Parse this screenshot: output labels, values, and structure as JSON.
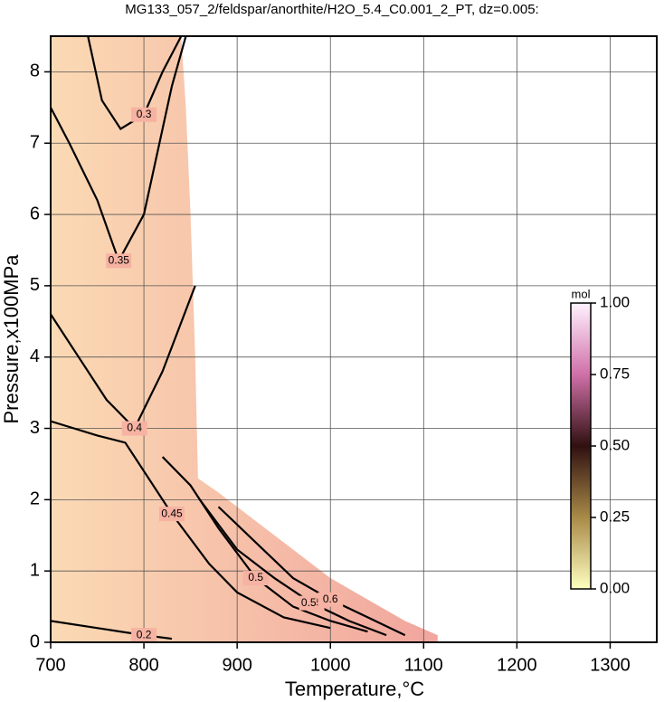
{
  "chart_data": {
    "type": "contour",
    "title": "MG133_057_2/feldspar/anorthite/H2O_5.4_C0.001_2_PT, dz=0.005:",
    "xlabel": "Temperature,°C",
    "ylabel": "Pressure,x100MPa",
    "xlim": [
      700,
      1350
    ],
    "ylim": [
      0,
      8.5
    ],
    "xticks": [
      700,
      800,
      900,
      1000,
      1100,
      1200,
      1300
    ],
    "yticks": [
      0,
      1,
      2,
      3,
      4,
      5,
      6,
      7,
      8
    ],
    "grid": true,
    "fill_color": "#f6b2a2",
    "domain": {
      "x": [
        700,
        700,
        840,
        845,
        850,
        855,
        858,
        880,
        920,
        960,
        1000,
        1040,
        1080,
        1115,
        1115
      ],
      "y": [
        0,
        8.5,
        8.5,
        7.5,
        6.0,
        4.0,
        2.3,
        2.1,
        1.7,
        1.3,
        0.9,
        0.6,
        0.3,
        0.1,
        0
      ]
    },
    "contours": [
      {
        "level": 0.2,
        "x": [
          700,
          760,
          800,
          830
        ],
        "y": [
          0.3,
          0.18,
          0.1,
          0.05
        ]
      },
      {
        "level": 0.3,
        "x": [
          740,
          755,
          775,
          800,
          820,
          840
        ],
        "y": [
          8.5,
          7.6,
          7.2,
          7.4,
          8.0,
          8.5
        ]
      },
      {
        "level": 0.35,
        "x": [
          700,
          720,
          750,
          773,
          800,
          830,
          845
        ],
        "y": [
          7.5,
          7.0,
          6.2,
          5.35,
          6.0,
          7.8,
          8.5
        ]
      },
      {
        "level": 0.4,
        "x": [
          700,
          730,
          760,
          790,
          820,
          855
        ],
        "y": [
          4.6,
          4.0,
          3.4,
          3.0,
          3.8,
          5.0
        ]
      },
      {
        "level": 0.45,
        "x": [
          700,
          750,
          780,
          800,
          830,
          870,
          900,
          950,
          1000
        ],
        "y": [
          3.1,
          2.9,
          2.8,
          2.4,
          1.8,
          1.1,
          0.7,
          0.35,
          0.2
        ]
      },
      {
        "level": 0.5,
        "x": [
          820,
          850,
          880,
          920,
          960,
          1000,
          1040
        ],
        "y": [
          2.6,
          2.2,
          1.6,
          0.9,
          0.5,
          0.3,
          0.15
        ]
      },
      {
        "level": 0.55,
        "x": [
          860,
          900,
          940,
          980,
          1020,
          1060
        ],
        "y": [
          2.0,
          1.3,
          0.9,
          0.55,
          0.3,
          0.1
        ]
      },
      {
        "level": 0.6,
        "x": [
          880,
          920,
          960,
          1000,
          1040,
          1080
        ],
        "y": [
          1.9,
          1.4,
          0.9,
          0.6,
          0.35,
          0.1
        ]
      }
    ],
    "colorbar": {
      "label": "mol",
      "lim": [
        0,
        1
      ],
      "ticks": [
        {
          "value": 0,
          "label": "0.00"
        },
        {
          "value": 0.25,
          "label": "0.25"
        },
        {
          "value": 0.5,
          "label": "0.50"
        },
        {
          "value": 0.75,
          "label": "0.75"
        },
        {
          "value": 1,
          "label": "1.00"
        }
      ],
      "colors": [
        "#ffffc0",
        "#a88a48",
        "#301010",
        "#d070a8",
        "#fff2ff"
      ]
    }
  }
}
